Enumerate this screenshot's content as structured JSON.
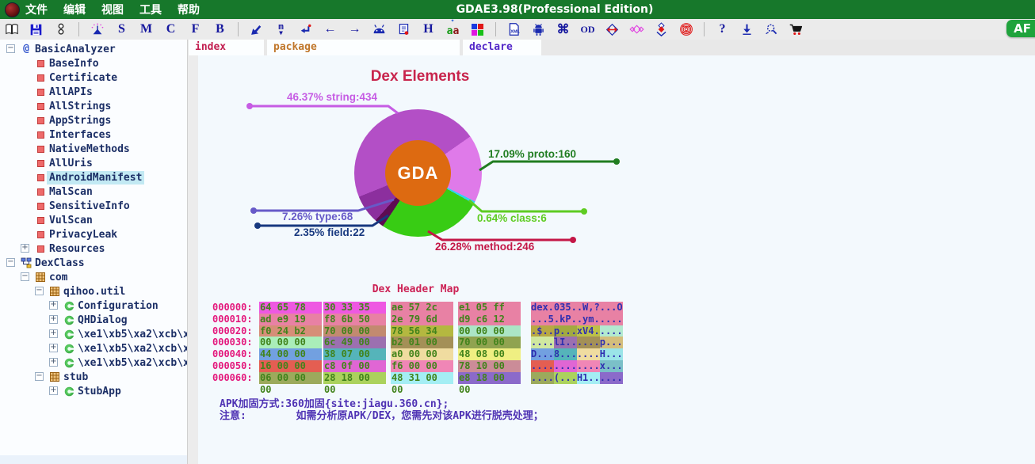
{
  "window": {
    "title": "GDAE3.98(Professional Edition)",
    "menus": [
      "文件",
      "编辑",
      "视图",
      "工具",
      "帮助"
    ],
    "badge": "AF"
  },
  "toolbar": {
    "icons": [
      {
        "name": "open-file-icon"
      },
      {
        "name": "save-icon"
      },
      {
        "name": "link-icon"
      },
      {
        "name": "separator"
      },
      {
        "name": "beacon-icon"
      },
      {
        "name": "letter-s-icon",
        "glyph": "S"
      },
      {
        "name": "letter-m-icon",
        "glyph": "M"
      },
      {
        "name": "letter-c-icon",
        "glyph": "C"
      },
      {
        "name": "letter-f-icon",
        "glyph": "F"
      },
      {
        "name": "letter-b-icon",
        "glyph": "B"
      },
      {
        "name": "separator"
      },
      {
        "name": "cursor-icon"
      },
      {
        "name": "method-jump-icon"
      },
      {
        "name": "return-icon"
      },
      {
        "name": "back-arrow-icon",
        "glyph": "←"
      },
      {
        "name": "forward-arrow-icon",
        "glyph": "→"
      },
      {
        "name": "android-head-icon"
      },
      {
        "name": "report-icon"
      },
      {
        "name": "letter-h-icon",
        "glyph": "H"
      },
      {
        "name": "string-decode-icon"
      },
      {
        "name": "color-blocks-icon"
      },
      {
        "name": "separator"
      },
      {
        "name": "xml-doc-icon"
      },
      {
        "name": "android-icon"
      },
      {
        "name": "command-icon",
        "glyph": "⌘"
      },
      {
        "name": "od-icon",
        "glyph": "OD"
      },
      {
        "name": "expand-arrows-icon"
      },
      {
        "name": "diamond-chain-icon"
      },
      {
        "name": "diamond-down-icon"
      },
      {
        "name": "fingerprint-icon"
      },
      {
        "name": "separator"
      },
      {
        "name": "help-icon",
        "glyph": "?"
      },
      {
        "name": "download-icon"
      },
      {
        "name": "search-plugin-icon"
      },
      {
        "name": "cart-icon"
      }
    ]
  },
  "tabs": [
    {
      "label": "index",
      "color": "#c21e50"
    },
    {
      "label": "package",
      "color": "#c0762a"
    },
    {
      "label": "declare",
      "color": "#5226c8"
    }
  ],
  "sidebar": {
    "items": [
      {
        "label": "BasicAnalyzer",
        "level": 0,
        "icon": "at",
        "expand": "minus"
      },
      {
        "label": "BaseInfo",
        "level": 1,
        "icon": "red-square"
      },
      {
        "label": "Certificate",
        "level": 1,
        "icon": "red-square"
      },
      {
        "label": "AllAPIs",
        "level": 1,
        "icon": "red-square"
      },
      {
        "label": "AllStrings",
        "level": 1,
        "icon": "red-square"
      },
      {
        "label": "AppStrings",
        "level": 1,
        "icon": "red-square"
      },
      {
        "label": "Interfaces",
        "level": 1,
        "icon": "red-square"
      },
      {
        "label": "NativeMethods",
        "level": 1,
        "icon": "red-square"
      },
      {
        "label": "AllUris",
        "level": 1,
        "icon": "red-square"
      },
      {
        "label": "AndroidManifest",
        "level": 1,
        "icon": "red-square",
        "selected": true
      },
      {
        "label": "MalScan",
        "level": 1,
        "icon": "red-square"
      },
      {
        "label": "SensitiveInfo",
        "level": 1,
        "icon": "red-square"
      },
      {
        "label": "VulScan",
        "level": 1,
        "icon": "red-square"
      },
      {
        "label": "PrivacyLeak",
        "level": 1,
        "icon": "red-square"
      },
      {
        "label": "Resources",
        "level": 1,
        "icon": "red-square",
        "expand": "plus"
      },
      {
        "label": "DexClass",
        "level": 0,
        "icon": "class-tree",
        "expand": "minus"
      },
      {
        "label": "com",
        "level": 1,
        "icon": "package",
        "expand": "minus"
      },
      {
        "label": "qihoo.util",
        "level": 2,
        "icon": "package",
        "expand": "minus"
      },
      {
        "label": "Configuration",
        "level": 3,
        "icon": "class",
        "expand": "plus"
      },
      {
        "label": "QHDialog",
        "level": 3,
        "icon": "class",
        "expand": "plus"
      },
      {
        "label": "\\xe1\\xb5\\xa2\\xcb\\x8b",
        "level": 3,
        "icon": "class",
        "expand": "plus"
      },
      {
        "label": "\\xe1\\xb5\\xa2\\xcb\\x8e",
        "level": 3,
        "icon": "class",
        "expand": "plus"
      },
      {
        "label": "\\xe1\\xb5\\xa2\\xcb\\x8f",
        "level": 3,
        "icon": "class",
        "expand": "plus"
      },
      {
        "label": "stub",
        "level": 2,
        "icon": "package",
        "expand": "minus"
      },
      {
        "label": "StubApp",
        "level": 3,
        "icon": "class",
        "expand": "plus"
      }
    ]
  },
  "chart_data": {
    "type": "pie",
    "title": "Dex Elements",
    "center_label": "GDA",
    "center_color": "#dd6a11",
    "start_angle_deg": 55,
    "order_clockwise": [
      "proto",
      "class",
      "method",
      "field",
      "type",
      "string"
    ],
    "segments": [
      {
        "label": "string",
        "count": 434,
        "pct": 46.37,
        "color": "#b34fc6",
        "label_color": "#c65ce4",
        "label_text": "46.37% string:434"
      },
      {
        "label": "proto",
        "count": 160,
        "pct": 17.09,
        "color": "#df7ae9",
        "label_color": "#207d20",
        "label_text": "17.09% proto:160"
      },
      {
        "label": "class",
        "count": 6,
        "pct": 0.64,
        "color": "#2fd4f0",
        "label_color": "#5ecc22",
        "label_text": "0.64% class:6"
      },
      {
        "label": "method",
        "count": 246,
        "pct": 26.28,
        "color": "#38cc14",
        "label_color": "#c41747",
        "label_text": "26.28% method:246"
      },
      {
        "label": "field",
        "count": 22,
        "pct": 2.35,
        "color": "#5d0b52",
        "label_color": "#17387f",
        "label_text": "2.35% field:22"
      },
      {
        "label": "type",
        "count": 68,
        "pct": 7.26,
        "color": "#8c2f9e",
        "label_color": "#675ac8",
        "label_text": "7.26% type:68"
      }
    ]
  },
  "hex_map": {
    "title": "Dex Header Map",
    "rows": [
      {
        "addr": "000000:",
        "groups": [
          {
            "hex": "64 65 78 0a",
            "bg": "#ee58e2"
          },
          {
            "hex": "30 33 35 00",
            "bg": "#ee58e2"
          },
          {
            "hex": "ae 57 2c 3f",
            "bg": "#e881a4"
          },
          {
            "hex": "e1 05 ff 4f",
            "bg": "#e881a4"
          }
        ],
        "ascii": [
          {
            "t": "dex.",
            "bg": "#e881a4"
          },
          {
            "t": "035.",
            "bg": "#e881a4"
          },
          {
            "t": ".W,?",
            "bg": "#e881a4"
          },
          {
            "t": "...O",
            "bg": "#e881a4"
          }
        ]
      },
      {
        "addr": "000010:",
        "groups": [
          {
            "hex": "ad e9 19 35",
            "bg": "#e881a4"
          },
          {
            "hex": "f8 6b 50 b5",
            "bg": "#e881a4"
          },
          {
            "hex": "2e 79 6d bd",
            "bg": "#e881a4"
          },
          {
            "hex": "d9 c6 12 ed",
            "bg": "#e881a4"
          }
        ],
        "ascii": [
          {
            "t": "...5",
            "bg": "#e881a4"
          },
          {
            "t": ".kP.",
            "bg": "#e881a4"
          },
          {
            "t": ".ym.",
            "bg": "#e881a4"
          },
          {
            "t": "....",
            "bg": "#e881a4"
          }
        ]
      },
      {
        "addr": "000020:",
        "groups": [
          {
            "hex": "f0 24 b2 00",
            "bg": "#d68e78"
          },
          {
            "hex": "70 00 00 00",
            "bg": "#c28a70"
          },
          {
            "hex": "78 56 34 12",
            "bg": "#b4b840"
          },
          {
            "hex": "00 00 00 00",
            "bg": "#abe5c5"
          }
        ],
        "ascii": [
          {
            "t": ".$..",
            "bg": "#b8a844"
          },
          {
            "t": "p...",
            "bg": "#a2aa40"
          },
          {
            "t": "xV4.",
            "bg": "#bcc048"
          },
          {
            "t": "....",
            "bg": "#b2ead0"
          }
        ]
      },
      {
        "addr": "000030:",
        "groups": [
          {
            "hex": "00 00 00 00",
            "bg": "#aaeeb9"
          },
          {
            "hex": "6c 49 00 00",
            "bg": "#9c70b0"
          },
          {
            "hex": "b2 01 00 00",
            "bg": "#a49057"
          },
          {
            "hex": "70 00 00 00",
            "bg": "#90a350"
          }
        ],
        "ascii": [
          {
            "t": "....",
            "bg": "#d0e8a0"
          },
          {
            "t": "lI..",
            "bg": "#9c70b0"
          },
          {
            "t": "....",
            "bg": "#a49057"
          },
          {
            "t": "p...",
            "bg": "#d4be7c"
          }
        ]
      },
      {
        "addr": "000040:",
        "groups": [
          {
            "hex": "44 00 00 00",
            "bg": "#72a0e0"
          },
          {
            "hex": "38 07 00 00",
            "bg": "#55b4ba"
          },
          {
            "hex": "a0 00 00 00",
            "bg": "#f0dca0"
          },
          {
            "hex": "48 08 00 00",
            "bg": "#efef82"
          }
        ],
        "ascii": [
          {
            "t": "D...",
            "bg": "#72a0e0"
          },
          {
            "t": "8...",
            "bg": "#55b4ba"
          },
          {
            "t": "....",
            "bg": "#f0dca0"
          },
          {
            "t": "H...",
            "bg": "#9ae4e8"
          }
        ]
      },
      {
        "addr": "000050:",
        "groups": [
          {
            "hex": "16 00 00 00",
            "bg": "#e45e52"
          },
          {
            "hex": "c8 0f 00 00",
            "bg": "#e066d4"
          },
          {
            "hex": "f6 00 00 00",
            "bg": "#f086b6"
          },
          {
            "hex": "78 10 00 00",
            "bg": "#cb8c98"
          }
        ],
        "ascii": [
          {
            "t": "....",
            "bg": "#e45e52"
          },
          {
            "t": "....",
            "bg": "#e066d4"
          },
          {
            "t": "....",
            "bg": "#f086b6"
          },
          {
            "t": "x...",
            "bg": "#7bc0c8"
          }
        ]
      },
      {
        "addr": "000060:",
        "groups": [
          {
            "hex": "06 00 00 00",
            "bg": "#9caa5c"
          },
          {
            "hex": "28 18 00 00",
            "bg": "#abd25d"
          },
          {
            "hex": "48 31 00 00",
            "bg": "#a4eef4"
          },
          {
            "hex": "e8 18 00 00",
            "bg": "#8b6aca"
          }
        ],
        "ascii": [
          {
            "t": "....",
            "bg": "#9caa5c"
          },
          {
            "t": "(...",
            "bg": "#abd25d"
          },
          {
            "t": "H1..",
            "bg": "#a4eef4"
          },
          {
            "t": "....",
            "bg": "#8b6aca"
          }
        ]
      }
    ]
  },
  "notes": [
    "APK加固方式:360加固{site:jiagu.360.cn};",
    "注意:        如需分析原APK/DEX，您需先对该APK进行脱壳处理；"
  ]
}
